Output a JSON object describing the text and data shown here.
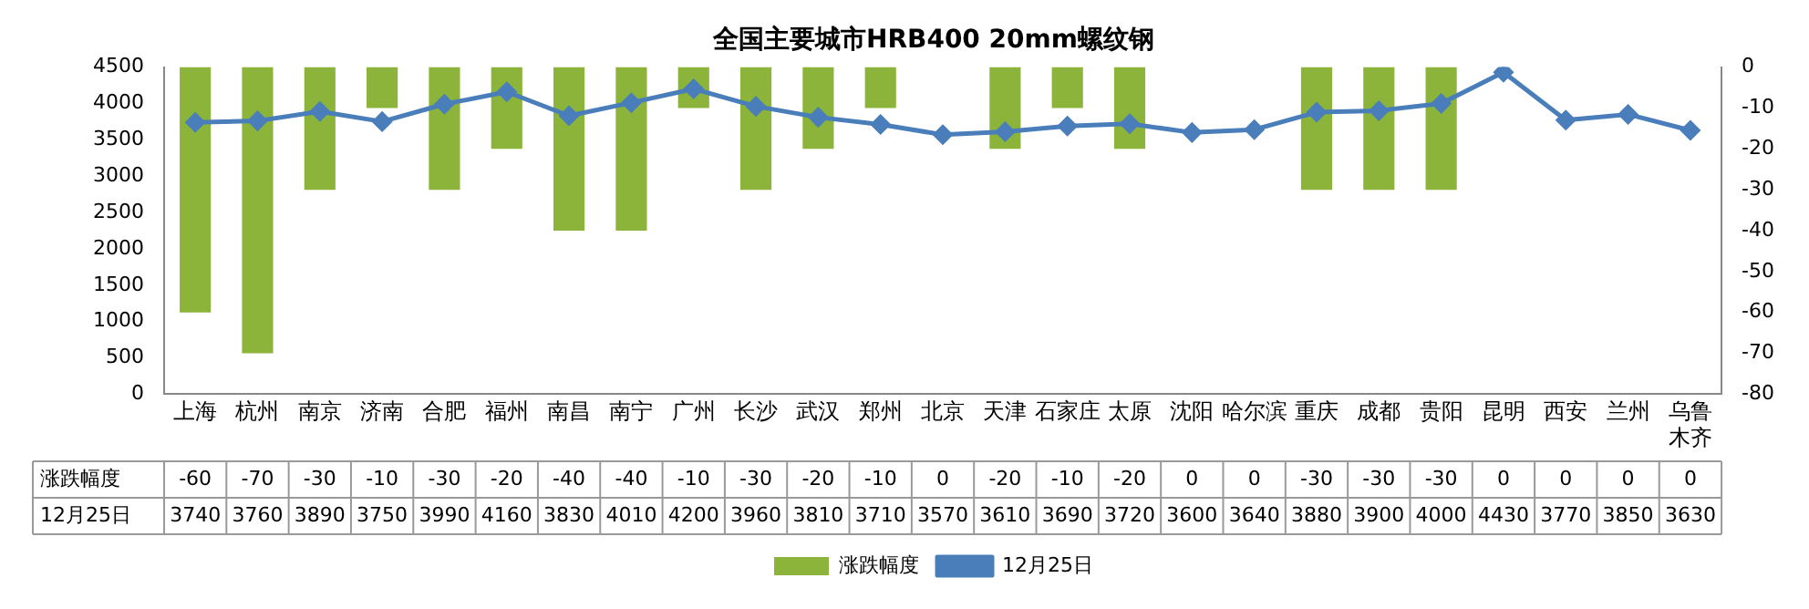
{
  "chart_data": {
    "type": "bar",
    "title": "全国主要城市HRB400 20mm螺纹钢",
    "categories": [
      "上海",
      "杭州",
      "南京",
      "济南",
      "合肥",
      "福州",
      "南昌",
      "南宁",
      "广州",
      "长沙",
      "武汉",
      "郑州",
      "北京",
      "天津",
      "石家庄",
      "太原",
      "沈阳",
      "哈尔滨",
      "重庆",
      "成都",
      "贵阳",
      "昆明",
      "西安",
      "兰州",
      "乌鲁木齐"
    ],
    "series": [
      {
        "name": "涨跌幅度",
        "axis": "y2",
        "color": "#8cb43a",
        "values": [
          -60,
          -70,
          -30,
          -10,
          -30,
          -20,
          -40,
          -40,
          -10,
          -30,
          -20,
          -10,
          0,
          -20,
          -10,
          -20,
          0,
          0,
          -30,
          -30,
          -30,
          0,
          0,
          0,
          0
        ]
      },
      {
        "name": "12月25日",
        "type": "line",
        "color": "#4a7ebb",
        "values": [
          3740,
          3760,
          3890,
          3750,
          3990,
          4160,
          3830,
          4010,
          4200,
          3960,
          3810,
          3710,
          3570,
          3610,
          3690,
          3720,
          3600,
          3640,
          3880,
          3900,
          4000,
          4430,
          3770,
          3850,
          3630
        ]
      }
    ],
    "ylim": [
      0,
      4500
    ],
    "yticks": [
      0,
      500,
      1000,
      1500,
      2000,
      2500,
      3000,
      3500,
      4000,
      4500
    ],
    "y2lim": [
      -80,
      0
    ],
    "y2ticks": [
      -80,
      -70,
      -60,
      -50,
      -40,
      -30,
      -20,
      -10,
      0
    ],
    "grid": false,
    "legend": "bottom",
    "marker": "diamond",
    "line_style": "solid",
    "data_labels": true
  }
}
